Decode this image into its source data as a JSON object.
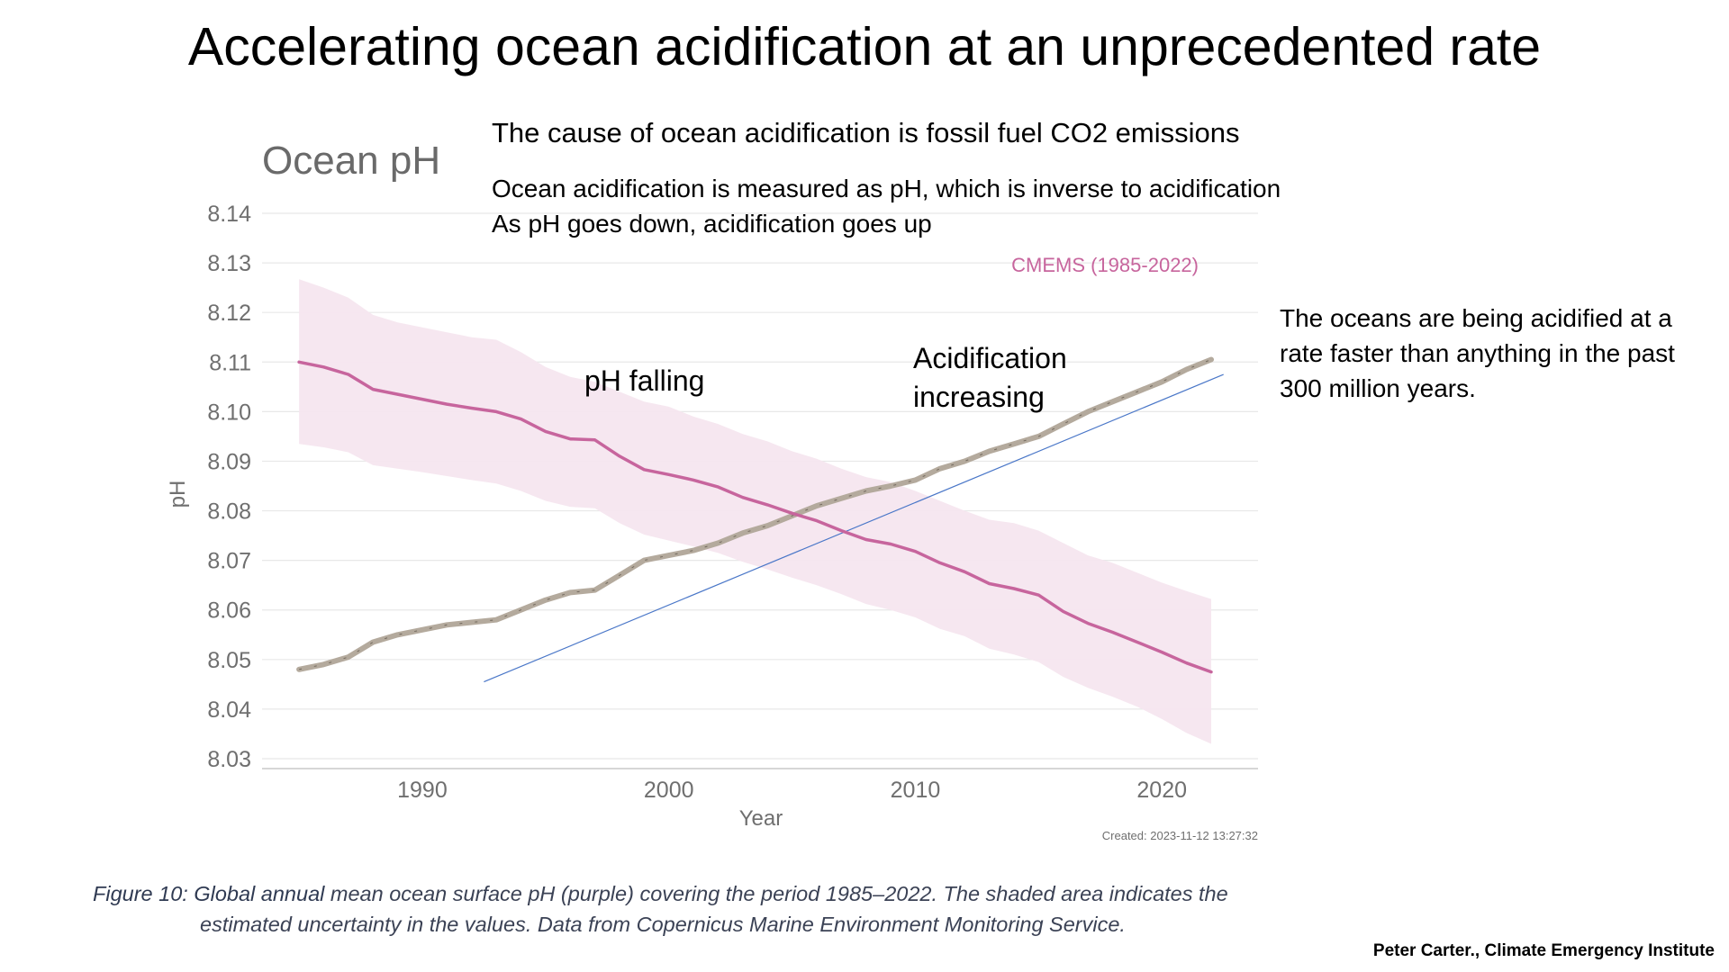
{
  "slide": {
    "title": "Accelerating ocean acidification at an unprecedented rate",
    "note_cause": "The cause of ocean acidification is fossil fuel CO2 emissions",
    "note_measured_1": "Ocean acidification is measured as pH, which is inverse to acidification",
    "note_measured_2": "As pH goes down, acidification goes up",
    "note_rate": "The oceans are being acidified at a rate faster than anything in the past 300 million years.",
    "caption_strong": "Figure 10: Global annual",
    "caption_rest": " mean ocean surface pH (purple) covering the period 1985–2022. The shaded area indicates the",
    "caption_line2": "estimated uncertainty in the values. Data from Copernicus Marine Environment Monitoring Service.",
    "credit": "Peter Carter., Climate Emergency Institute"
  },
  "chart_data": {
    "type": "line",
    "title": "Ocean pH",
    "xlabel": "Year",
    "ylabel": "pH",
    "xlim": [
      1983.5,
      2023.9
    ],
    "ylim": [
      8.03,
      8.14
    ],
    "y_ticks": [
      "8.03",
      "8.04",
      "8.05",
      "8.06",
      "8.07",
      "8.08",
      "8.09",
      "8.10",
      "8.11",
      "8.12",
      "8.13",
      "8.14"
    ],
    "x_ticks": [
      "1990",
      "2000",
      "2010",
      "2020"
    ],
    "grid": "horizontal",
    "legend": {
      "label": "CMEMS (1985-2022)",
      "placement": "top-right"
    },
    "created": "Created: 2023-11-12 13:27:32",
    "colors": {
      "ph": "#c7659d",
      "band": "#f6e6ef",
      "acidification": "#b4aa9d",
      "trend": "#4a77c8",
      "grid": "#e8e8e8"
    },
    "series": [
      {
        "name": "CMEMS (1985-2022)",
        "x": [
          1985,
          1986,
          1987,
          1988,
          1989,
          1990,
          1991,
          1992,
          1993,
          1994,
          1995,
          1996,
          1997,
          1998,
          1999,
          2000,
          2001,
          2002,
          2003,
          2004,
          2005,
          2006,
          2007,
          2008,
          2009,
          2010,
          2011,
          2012,
          2013,
          2014,
          2015,
          2016,
          2017,
          2018,
          2019,
          2020,
          2021,
          2022
        ],
        "y": [
          8.11,
          8.109,
          8.1075,
          8.1045,
          8.1035,
          8.1025,
          8.1015,
          8.1007,
          8.1,
          8.0985,
          8.096,
          8.0945,
          8.0943,
          8.091,
          8.0883,
          8.0873,
          8.0862,
          8.0848,
          8.0827,
          8.0812,
          8.0795,
          8.078,
          8.076,
          8.0742,
          8.0733,
          8.0718,
          8.0695,
          8.0677,
          8.0653,
          8.0643,
          8.063,
          8.0597,
          8.0573,
          8.0555,
          8.0535,
          8.0515,
          8.0493,
          8.0475
        ],
        "upper": [
          8.1267,
          8.125,
          8.123,
          8.1195,
          8.118,
          8.117,
          8.116,
          8.115,
          8.1145,
          8.112,
          8.109,
          8.107,
          8.106,
          8.104,
          8.102,
          8.101,
          8.099,
          8.0975,
          8.0955,
          8.094,
          8.092,
          8.0905,
          8.0885,
          8.0868,
          8.0858,
          8.084,
          8.082,
          8.08,
          8.0782,
          8.0775,
          8.076,
          8.0735,
          8.071,
          8.0695,
          8.0675,
          8.0655,
          8.0638,
          8.0622
        ],
        "lower": [
          8.0935,
          8.0928,
          8.0918,
          8.0892,
          8.0885,
          8.0878,
          8.087,
          8.0862,
          8.0855,
          8.084,
          8.082,
          8.0808,
          8.0805,
          8.0775,
          8.0752,
          8.074,
          8.0728,
          8.0715,
          8.0697,
          8.0682,
          8.0665,
          8.065,
          8.0632,
          8.0612,
          8.06,
          8.0585,
          8.0562,
          8.0547,
          8.0522,
          8.051,
          8.0495,
          8.0465,
          8.0443,
          8.0425,
          8.0405,
          8.038,
          8.0352,
          8.033
        ]
      }
    ],
    "acidification_line": {
      "x": [
        1985,
        1986,
        1987,
        1988,
        1989,
        1990,
        1991,
        1992,
        1993,
        1994,
        1995,
        1996,
        1997,
        1998,
        1999,
        2000,
        2001,
        2002,
        2003,
        2004,
        2005,
        2006,
        2007,
        2008,
        2009,
        2010,
        2011,
        2012,
        2013,
        2014,
        2015,
        2016,
        2017,
        2018,
        2019,
        2020,
        2021,
        2022
      ],
      "y": [
        8.048,
        8.049,
        8.0505,
        8.0535,
        8.055,
        8.056,
        8.057,
        8.0575,
        8.058,
        8.06,
        8.062,
        8.0635,
        8.064,
        8.067,
        8.07,
        8.071,
        8.072,
        8.0735,
        8.0755,
        8.077,
        8.079,
        8.081,
        8.0825,
        8.084,
        8.085,
        8.0862,
        8.0885,
        8.09,
        8.092,
        8.0935,
        8.095,
        8.0975,
        8.1,
        8.102,
        8.104,
        8.106,
        8.1085,
        8.1105
      ]
    },
    "trend_line": {
      "x": [
        1992.5,
        2022.5
      ],
      "y": [
        8.0455,
        8.1075
      ]
    },
    "annotations": [
      {
        "text": "pH falling"
      },
      {
        "text": "Acidification"
      },
      {
        "text": "increasing"
      }
    ]
  }
}
